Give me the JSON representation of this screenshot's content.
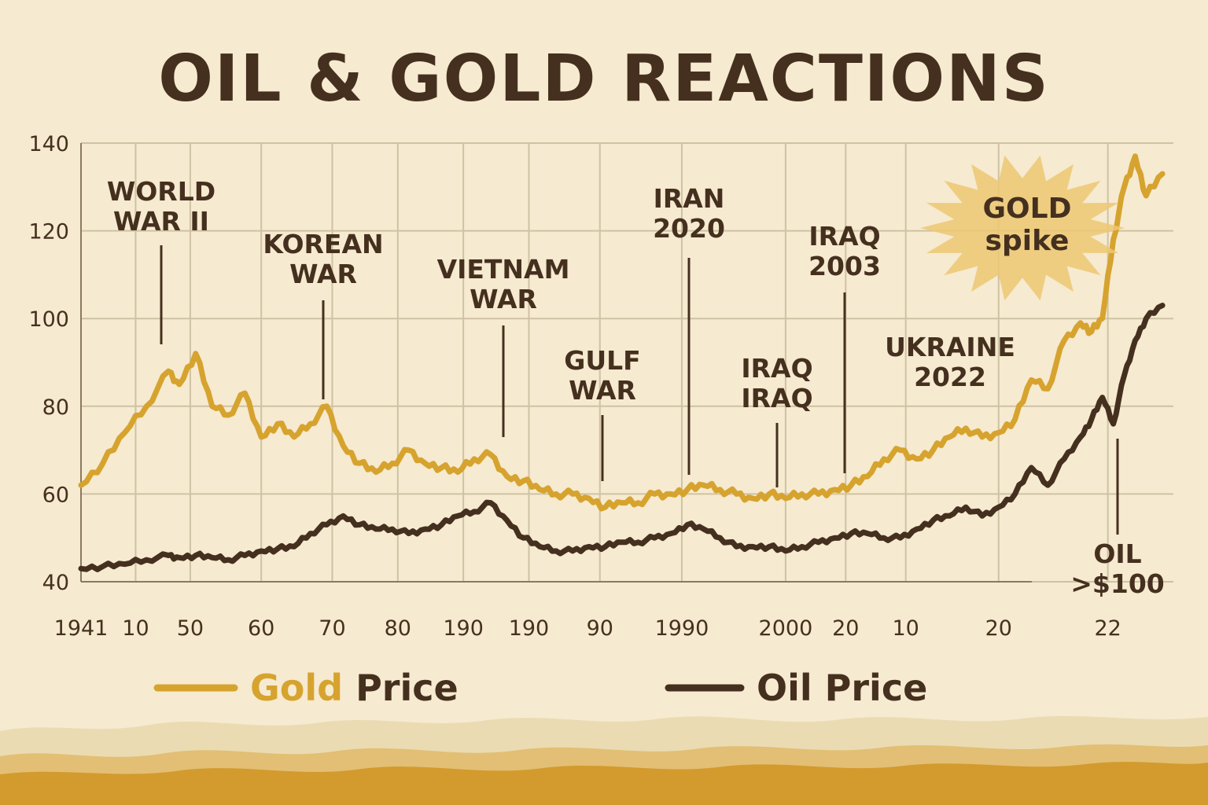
{
  "chart_data": {
    "type": "line",
    "title": "OIL & GOLD REACTIONS",
    "xlabel": "",
    "ylabel": "",
    "ylim": [
      40,
      140
    ],
    "yticks": [
      40,
      60,
      80,
      100,
      120,
      140
    ],
    "xlim": [
      0,
      100
    ],
    "xtick_labels": [
      {
        "label": "1941",
        "x": 0
      },
      {
        "label": "10",
        "x": 5
      },
      {
        "label": "50",
        "x": 10
      },
      {
        "label": "60",
        "x": 16.5
      },
      {
        "label": "70",
        "x": 23
      },
      {
        "label": "80",
        "x": 29
      },
      {
        "label": "190",
        "x": 35
      },
      {
        "label": "190",
        "x": 41
      },
      {
        "label": "90",
        "x": 47.5
      },
      {
        "label": "1990",
        "x": 55
      },
      {
        "label": "2000",
        "x": 64.5
      },
      {
        "label": "20",
        "x": 70
      },
      {
        "label": "10",
        "x": 75.5
      },
      {
        "label": "20",
        "x": 84
      },
      {
        "label": "22",
        "x": 94
      }
    ],
    "gridlines_x": [
      0,
      5,
      10,
      16.5,
      23,
      29,
      35,
      41,
      47.5,
      55,
      64.5,
      70,
      75.5,
      84,
      94
    ],
    "series": [
      {
        "name": "Gold Price",
        "color": "#d6a32e",
        "x": [
          0,
          2,
          4,
          6,
          8,
          9,
          10.5,
          12,
          13.5,
          15,
          16.5,
          18,
          19.5,
          21,
          22.5,
          24,
          25.5,
          27,
          28.5,
          30,
          31.5,
          33,
          34.5,
          36,
          37.5,
          39,
          40.5,
          42,
          43.5,
          45,
          46.5,
          48,
          49.5,
          51,
          52.5,
          54,
          55.5,
          57,
          58.5,
          60,
          61.5,
          63,
          64.5,
          66,
          67.5,
          69,
          70.5,
          72,
          73.5,
          75,
          76.5,
          78,
          79.5,
          81,
          82.5,
          84,
          85.5,
          87,
          88.5,
          90,
          91.5,
          92.5,
          93.5,
          94.5,
          95.5,
          96.5,
          97.5,
          99
        ],
        "values": [
          62,
          67,
          74,
          80,
          88,
          85,
          92,
          80,
          78,
          83,
          73,
          76,
          73,
          76,
          80,
          71,
          67,
          65,
          67,
          70,
          67,
          66,
          65,
          68,
          69,
          64,
          63,
          61,
          60,
          60,
          59,
          57,
          58,
          58,
          60,
          60,
          61,
          62,
          61,
          60,
          59,
          60,
          59,
          60,
          60,
          61,
          62,
          64,
          68,
          70,
          68,
          70,
          73,
          75,
          73,
          74,
          77,
          86,
          84,
          95,
          99,
          97,
          100,
          118,
          130,
          137,
          128,
          133
        ]
      },
      {
        "name": "Oil Price",
        "color": "#45301f",
        "x": [
          0,
          2,
          4,
          6,
          8,
          9,
          10.5,
          12,
          13.5,
          15,
          16.5,
          18,
          19.5,
          21,
          22.5,
          24,
          25.5,
          27,
          28.5,
          30,
          31.5,
          33,
          34.5,
          36,
          37.5,
          39,
          40.5,
          42,
          43.5,
          45,
          46.5,
          48,
          49.5,
          51,
          52.5,
          54,
          55.5,
          57,
          58.5,
          60,
          61.5,
          63,
          64.5,
          66,
          67.5,
          69,
          70.5,
          72,
          73.5,
          75,
          76.5,
          78,
          79.5,
          81,
          82.5,
          84,
          85.5,
          87,
          88.5,
          90,
          91.5,
          92.5,
          93.5,
          94.5,
          95.5,
          96.5,
          97.5,
          99
        ],
        "values": [
          43,
          43.5,
          44,
          45,
          46,
          45.5,
          46,
          45.5,
          45,
          46,
          47,
          47.5,
          48,
          51,
          53,
          55,
          53,
          52,
          52,
          51,
          52,
          53,
          55,
          56,
          58,
          54,
          50,
          48,
          47,
          47,
          48,
          48,
          49,
          49,
          50,
          51,
          53,
          52,
          50,
          48,
          48,
          48,
          47,
          48,
          49,
          50,
          51,
          51,
          50,
          50,
          52,
          54,
          55,
          57,
          55,
          57,
          60,
          66,
          62,
          68,
          73,
          77,
          82,
          76,
          87,
          95,
          100,
          103
        ]
      }
    ],
    "annotations": [
      {
        "lines": [
          "WORLD",
          "WAR II"
        ],
        "x": 10
      },
      {
        "lines": [
          "KOREAN",
          "WAR"
        ],
        "x": 23
      },
      {
        "lines": [
          "VIETNAM",
          "WAR"
        ],
        "x": 41
      },
      {
        "lines": [
          "GULF",
          "WAR"
        ],
        "x": 49
      },
      {
        "lines": [
          "IRAN",
          "2020"
        ],
        "x": 58
      },
      {
        "lines": [
          "IRAQ",
          "IRAQ"
        ],
        "x": 66.5
      },
      {
        "lines": [
          "IRAQ",
          "2003"
        ],
        "x": 72.5
      },
      {
        "lines": [
          "UKRAINE",
          "2022"
        ],
        "x": 80.5
      },
      {
        "lines": [
          "OIL",
          ">$100"
        ],
        "x": 94.5
      }
    ],
    "callout": {
      "lines": [
        "GOLD",
        "spike"
      ]
    },
    "legend": {
      "position": "bottom",
      "gold": {
        "word1": "Gold",
        "word2": " Price"
      },
      "oil": {
        "label": "Oil Price"
      }
    }
  }
}
